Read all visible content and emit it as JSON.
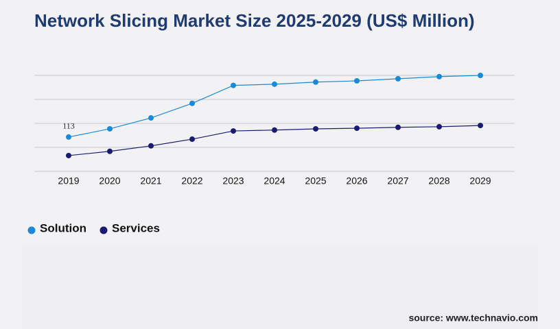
{
  "chart_data": {
    "type": "line",
    "title": "Network Slicing Market Size 2025-2029 (US$ Million)",
    "categories": [
      "2019",
      "2020",
      "2021",
      "2022",
      "2023",
      "2024",
      "2025",
      "2026",
      "2027",
      "2028",
      "2029"
    ],
    "series": [
      {
        "name": "Solution",
        "color": "#1a8ad4",
        "values": [
          113,
          140,
          176,
          224,
          283,
          287,
          294,
          298,
          305,
          312,
          316
        ],
        "value_labels": [
          "113",
          null,
          null,
          null,
          null,
          null,
          null,
          null,
          null,
          null,
          null
        ]
      },
      {
        "name": "Services",
        "color": "#1c1a6e",
        "values": [
          52,
          66,
          84,
          106,
          133,
          136,
          140,
          142,
          145,
          147,
          151
        ]
      }
    ],
    "ylim": [
      0,
      316
    ],
    "yticks": [
      0,
      79,
      158,
      237,
      316
    ],
    "grid": true,
    "show_tick_labels": false,
    "legend": "bottom-left",
    "source": "source: www.technavio.com"
  }
}
